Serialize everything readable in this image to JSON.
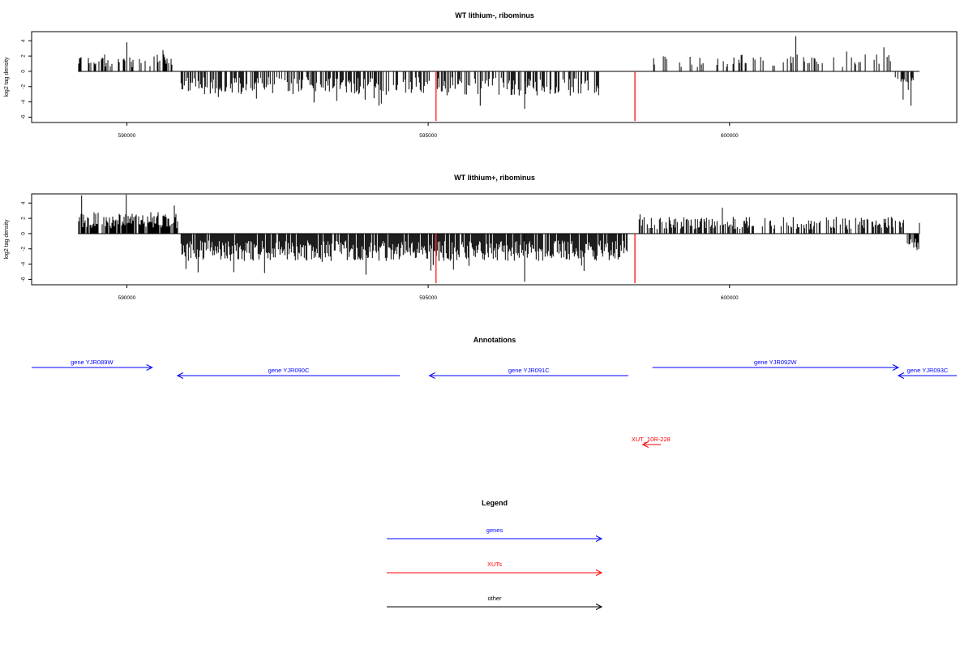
{
  "chart_data": [
    {
      "type": "bar",
      "title": "WT lithium-, ribominus",
      "xlabel": "",
      "ylabel": "log2 tag density",
      "xlim": [
        588420,
        603770
      ],
      "ylim": [
        -6.7,
        5.2
      ],
      "xticks": [
        590000,
        595000,
        600000
      ],
      "xtick_labels": [
        "590000",
        "595000",
        "600000"
      ],
      "yticks": [
        -6,
        -4,
        -2,
        0,
        2,
        4
      ],
      "ytick_labels": [
        "-6",
        "-4",
        "-2",
        "0",
        "2",
        "4"
      ],
      "baseline": 0,
      "baseline_range": [
        589190,
        603150
      ],
      "bar_color": "#000000",
      "marker_color": "#ff0000",
      "marker_lines": [
        {
          "x": 595130,
          "y": -6.5
        },
        {
          "x": 598430,
          "y": -6.5
        }
      ],
      "segments": [
        {
          "start": 589200,
          "end": 590850,
          "density": 0.3,
          "amp": 2.2,
          "sign": 1,
          "seed": 11
        },
        {
          "start": 590900,
          "end": 595050,
          "density": 0.55,
          "amp": 3.0,
          "sign": -1,
          "seed": 23
        },
        {
          "start": 595150,
          "end": 597850,
          "density": 0.5,
          "amp": 3.2,
          "sign": -1,
          "seed": 37
        },
        {
          "start": 598700,
          "end": 602700,
          "density": 0.2,
          "amp": 2.2,
          "sign": 1,
          "seed": 41
        },
        {
          "start": 602750,
          "end": 603050,
          "density": 0.45,
          "amp": 2.5,
          "sign": -1,
          "seed": 53
        }
      ],
      "notable_points": [
        {
          "x": 590000,
          "y": 3.8
        },
        {
          "x": 596600,
          "y": -4.9
        },
        {
          "x": 601100,
          "y": 4.6
        },
        {
          "x": 602880,
          "y": -3.7
        },
        {
          "x": 603010,
          "y": -4.5
        }
      ]
    },
    {
      "type": "bar",
      "title": "WT lithium+, ribominus",
      "xlabel": "",
      "ylabel": "log2 tag density",
      "xlim": [
        588420,
        603770
      ],
      "ylim": [
        -6.7,
        5.2
      ],
      "xticks": [
        590000,
        595000,
        600000
      ],
      "xtick_labels": [
        "590000",
        "595000",
        "600000"
      ],
      "yticks": [
        -6,
        -4,
        -2,
        0,
        2,
        4
      ],
      "ytick_labels": [
        "-6",
        "-4",
        "-2",
        "0",
        "2",
        "4"
      ],
      "baseline": 0,
      "baseline_range": [
        589190,
        603150
      ],
      "bar_color": "#000000",
      "marker_color": "#ff0000",
      "marker_lines": [
        {
          "x": 595130,
          "y": -6.5
        },
        {
          "x": 598430,
          "y": -6.5
        }
      ],
      "segments": [
        {
          "start": 589200,
          "end": 590850,
          "density": 0.8,
          "amp": 2.8,
          "sign": 1,
          "seed": 101
        },
        {
          "start": 590900,
          "end": 598300,
          "density": 0.9,
          "amp": 3.6,
          "sign": -1,
          "seed": 131
        },
        {
          "start": 598500,
          "end": 602900,
          "density": 0.55,
          "amp": 2.2,
          "sign": 1,
          "seed": 149
        },
        {
          "start": 602950,
          "end": 603150,
          "density": 0.8,
          "amp": 2.3,
          "sign": -1,
          "seed": 167
        }
      ],
      "notable_points": [
        {
          "x": 589250,
          "y": 5.0
        },
        {
          "x": 589990,
          "y": 5.1
        },
        {
          "x": 596600,
          "y": -6.3
        },
        {
          "x": 599880,
          "y": 3.4
        },
        {
          "x": 603150,
          "y": 1.4
        }
      ]
    }
  ],
  "annotations": {
    "title": "Annotations",
    "features": [
      {
        "label": "gene YJR089W",
        "kind": "gene",
        "strand": "+",
        "start": 588420,
        "end": 590420,
        "row": 0
      },
      {
        "label": "gene YJR090C",
        "kind": "gene",
        "strand": "-",
        "start": 590840,
        "end": 594530,
        "row": 1
      },
      {
        "label": "gene YJR091C",
        "kind": "gene",
        "strand": "-",
        "start": 595020,
        "end": 598320,
        "row": 1
      },
      {
        "label": "gene YJR092W",
        "kind": "gene",
        "strand": "+",
        "start": 598720,
        "end": 602800,
        "row": 0
      },
      {
        "label": "gene YJR093C",
        "kind": "gene",
        "strand": "-",
        "start": 602800,
        "end": 603770,
        "row": 1
      },
      {
        "label": "XUT_10R-228",
        "kind": "xut",
        "strand": "-",
        "start": 598560,
        "end": 598860,
        "row": 2
      }
    ]
  },
  "legend": {
    "title": "Legend",
    "items": [
      {
        "label": "genes",
        "color": "#0000ff"
      },
      {
        "label": "XUTs",
        "color": "#ff0000"
      },
      {
        "label": "other",
        "color": "#000000"
      }
    ]
  },
  "colors": {
    "gene": "#0000ff",
    "xut": "#ff0000",
    "other": "#000000"
  }
}
